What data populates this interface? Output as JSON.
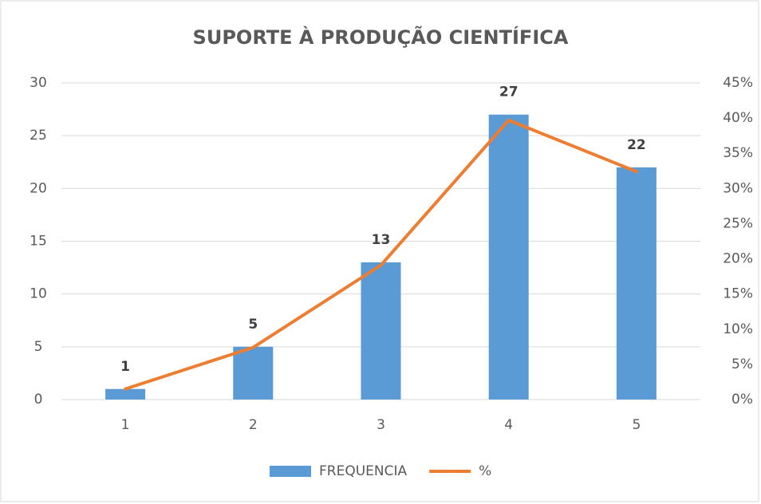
{
  "chart_data": {
    "type": "combo",
    "title": "SUPORTE À PRODUÇÃO CIENTÍFICA",
    "categories": [
      "1",
      "2",
      "3",
      "4",
      "5"
    ],
    "series": [
      {
        "name": "FREQUENCIA",
        "type": "bar",
        "color": "#5b9bd5",
        "values": [
          1,
          5,
          13,
          27,
          22
        ]
      },
      {
        "name": "%",
        "type": "line",
        "axis": "y2",
        "color": "#ed7d31",
        "values": [
          1.5,
          7.4,
          19.1,
          39.7,
          32.4
        ]
      }
    ],
    "ylim": [
      0,
      30
    ],
    "yticks": [
      0,
      5,
      10,
      15,
      20,
      25,
      30
    ],
    "y2lim": [
      0,
      45
    ],
    "y2ticks": [
      {
        "value": 0,
        "label": "0%"
      },
      {
        "value": 5,
        "label": "5%"
      },
      {
        "value": 10,
        "label": "10%"
      },
      {
        "value": 15,
        "label": "15%"
      },
      {
        "value": 20,
        "label": "20%"
      },
      {
        "value": 25,
        "label": "25%"
      },
      {
        "value": 30,
        "label": "30%"
      },
      {
        "value": 35,
        "label": "35%"
      },
      {
        "value": 40,
        "label": "40%"
      },
      {
        "value": 45,
        "label": "45%"
      }
    ],
    "grid": true,
    "legend": "bottom"
  }
}
